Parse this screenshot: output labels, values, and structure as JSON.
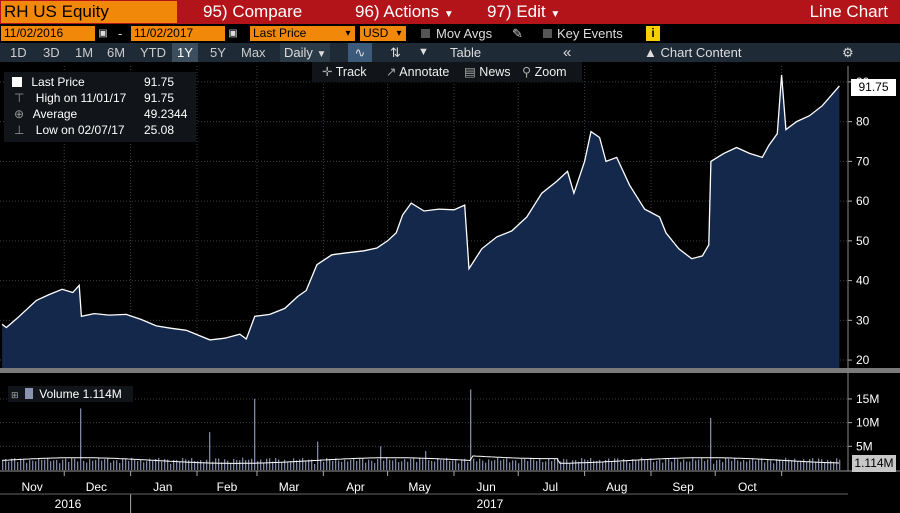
{
  "header": {
    "ticker": "RH US Equity",
    "menu": [
      {
        "num": "95)",
        "label": "Compare"
      },
      {
        "num": "96)",
        "label": "Actions"
      },
      {
        "num": "97)",
        "label": "Edit"
      }
    ],
    "view_title": "Line Chart"
  },
  "controls": {
    "start_date": "11/02/2016",
    "dash": "-",
    "end_date": "11/02/2017",
    "field": "Last Price",
    "currency": "USD",
    "mov_avgs": "Mov Avgs",
    "key_events": "Key Events",
    "info_icon": "i"
  },
  "timeframes": {
    "items": [
      "1D",
      "3D",
      "1M",
      "6M",
      "YTD",
      "1Y",
      "5Y",
      "Max"
    ],
    "selected": "1Y",
    "frequency": "Daily",
    "table": "Table",
    "collapse": "«",
    "chart_content": "Chart Content"
  },
  "toolbar": {
    "track": "Track",
    "annotate": "Annotate",
    "news": "News",
    "zoom": "Zoom"
  },
  "legend": {
    "rows": [
      {
        "label": "Last Price",
        "value": "91.75"
      },
      {
        "label": "High on 11/01/17",
        "value": "91.75"
      },
      {
        "label": "Average",
        "value": "49.2344"
      },
      {
        "label": "Low on 02/07/17",
        "value": "25.08"
      }
    ]
  },
  "volume_legend": {
    "label": "Volume",
    "value": "1.114M"
  },
  "last_price_tag": "91.75",
  "volume_tag": "1.114M",
  "colors": {
    "top_bar": "#b3141a",
    "ticker_bg": "#f2880a",
    "line": "#ffffff",
    "area_fill": "#13284a",
    "volume_bar": "#7d86a3"
  },
  "chart_data": [
    {
      "type": "area",
      "series": [
        {
          "name": "Last Price",
          "points": [
            [
              "2016-11-02",
              29
            ],
            [
              "2016-11-04",
              28.2
            ],
            [
              "2016-11-09",
              30.5
            ],
            [
              "2016-11-14",
              33
            ],
            [
              "2016-11-18",
              35
            ],
            [
              "2016-11-24",
              36.5
            ],
            [
              "2016-11-30",
              37.8
            ],
            [
              "2016-12-05",
              37
            ],
            [
              "2016-12-08",
              38.8
            ],
            [
              "2016-12-09",
              31
            ],
            [
              "2016-12-15",
              31.7
            ],
            [
              "2016-12-22",
              31.3
            ],
            [
              "2016-12-30",
              31.5
            ],
            [
              "2017-01-06",
              30.2
            ],
            [
              "2017-01-13",
              28.6
            ],
            [
              "2017-01-20",
              28
            ],
            [
              "2017-01-27",
              27.5
            ],
            [
              "2017-02-07",
              25.08
            ],
            [
              "2017-02-14",
              25.5
            ],
            [
              "2017-02-21",
              26.5
            ],
            [
              "2017-02-24",
              25.3
            ],
            [
              "2017-02-28",
              31
            ],
            [
              "2017-03-07",
              31.5
            ],
            [
              "2017-03-14",
              33
            ],
            [
              "2017-03-20",
              36
            ],
            [
              "2017-03-24",
              37.5
            ],
            [
              "2017-03-29",
              44
            ],
            [
              "2017-04-05",
              46.5
            ],
            [
              "2017-04-12",
              47
            ],
            [
              "2017-04-20",
              47.5
            ],
            [
              "2017-04-26",
              48.2
            ],
            [
              "2017-05-01",
              50
            ],
            [
              "2017-05-05",
              52
            ],
            [
              "2017-05-08",
              56.5
            ],
            [
              "2017-05-12",
              59.5
            ],
            [
              "2017-05-18",
              57.5
            ],
            [
              "2017-05-25",
              58
            ],
            [
              "2017-06-01",
              57.8
            ],
            [
              "2017-06-06",
              59
            ],
            [
              "2017-06-08",
              43
            ],
            [
              "2017-06-14",
              48
            ],
            [
              "2017-06-21",
              51
            ],
            [
              "2017-06-28",
              52.5
            ],
            [
              "2017-07-05",
              56
            ],
            [
              "2017-07-12",
              62
            ],
            [
              "2017-07-19",
              65
            ],
            [
              "2017-07-24",
              67.5
            ],
            [
              "2017-07-27",
              62
            ],
            [
              "2017-08-01",
              70
            ],
            [
              "2017-08-04",
              77.5
            ],
            [
              "2017-08-08",
              76
            ],
            [
              "2017-08-11",
              70
            ],
            [
              "2017-08-16",
              71
            ],
            [
              "2017-08-22",
              64
            ],
            [
              "2017-08-29",
              58
            ],
            [
              "2017-09-05",
              56
            ],
            [
              "2017-09-08",
              52
            ],
            [
              "2017-09-14",
              48
            ],
            [
              "2017-09-20",
              45.5
            ],
            [
              "2017-09-25",
              46.2
            ],
            [
              "2017-09-28",
              49
            ],
            [
              "2017-09-29",
              70
            ],
            [
              "2017-10-05",
              72
            ],
            [
              "2017-10-11",
              73.5
            ],
            [
              "2017-10-17",
              72
            ],
            [
              "2017-10-23",
              71
            ],
            [
              "2017-10-26",
              74
            ],
            [
              "2017-10-30",
              77
            ],
            [
              "2017-11-03",
              78
            ],
            [
              "2017-11-08",
              80
            ],
            [
              "2017-11-14",
              81.5
            ],
            [
              "2017-11-20",
              84
            ],
            [
              "2017-11-24",
              86.5
            ],
            [
              "2017-11-28",
              89
            ],
            [
              "2017-11-01",
              91.75
            ]
          ]
        }
      ],
      "y_ticks": [
        20,
        30,
        40,
        50,
        60,
        70,
        80,
        90
      ],
      "ylim": [
        18,
        94
      ],
      "x_months": [
        "Nov",
        "Dec",
        "Jan",
        "Feb",
        "Mar",
        "Apr",
        "May",
        "Jun",
        "Jul",
        "Aug",
        "Sep",
        "Oct"
      ],
      "x_years": [
        "2016",
        "2017"
      ],
      "grid": true
    },
    {
      "type": "bar",
      "series": [
        {
          "name": "Volume",
          "units": "millions",
          "spikes": [
            [
              "2016-12-08",
              13
            ],
            [
              "2017-02-07",
              8
            ],
            [
              "2017-02-28",
              15
            ],
            [
              "2017-03-29",
              6
            ],
            [
              "2017-04-27",
              5
            ],
            [
              "2017-05-18",
              4
            ],
            [
              "2017-06-09",
              17
            ],
            [
              "2017-09-29",
              11
            ]
          ]
        }
      ],
      "y_ticks": [
        "5M",
        "10M",
        "15M"
      ],
      "last_value": "1.114M"
    }
  ]
}
